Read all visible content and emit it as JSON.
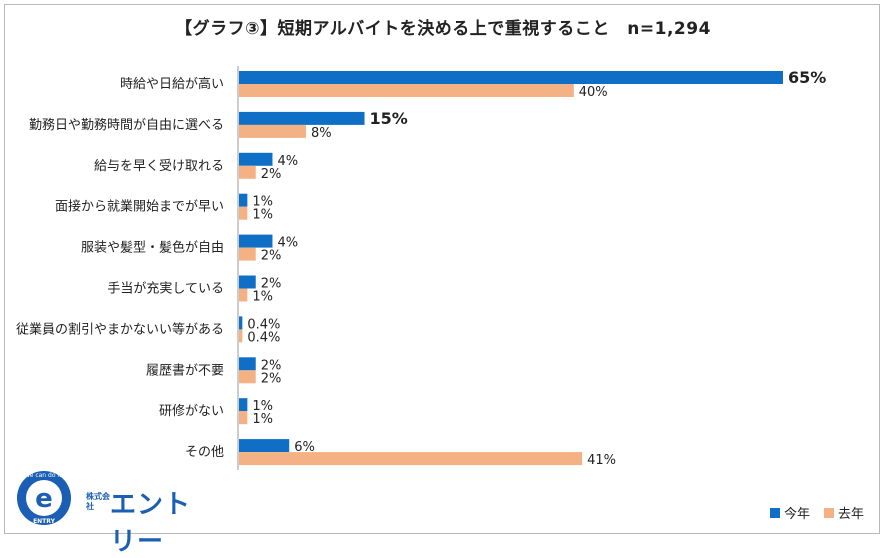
{
  "chart_data": {
    "type": "bar",
    "orientation": "horizontal",
    "title": "【グラフ③】短期アルバイトを決める上で重視すること　n=1,294",
    "categories": [
      "時給や日給が高い",
      "勤務日や勤務時間が自由に選べる",
      "給与を早く受け取れる",
      "面接から就業開始までが早い",
      "服装や髪型・髪色が自由",
      "手当が充実している",
      "従業員の割引やまかないい等がある",
      "履歴書が不要",
      "研修がない",
      "その他"
    ],
    "series": [
      {
        "name": "今年",
        "color": "#0f6fc6",
        "values": [
          65,
          15,
          4,
          1,
          4,
          2,
          0.4,
          2,
          1,
          6
        ],
        "labels": [
          "65%",
          "15%",
          "4%",
          "1%",
          "4%",
          "2%",
          "0.4%",
          "2%",
          "1%",
          "6%"
        ],
        "bold": [
          true,
          true,
          false,
          false,
          false,
          false,
          false,
          false,
          false,
          false
        ]
      },
      {
        "name": "去年",
        "color": "#f4b183",
        "values": [
          40,
          8,
          2,
          1,
          2,
          1,
          0.4,
          2,
          1,
          41
        ],
        "labels": [
          "40%",
          "8%",
          "2%",
          "1%",
          "2%",
          "1%",
          "0.4%",
          "2%",
          "1%",
          "41%"
        ],
        "bold": [
          false,
          false,
          false,
          false,
          false,
          false,
          false,
          false,
          false,
          false
        ]
      }
    ],
    "xlim": [
      0,
      65
    ],
    "grid": false,
    "legend_position": "bottom-right"
  },
  "logo": {
    "badge_text": "We can do it!",
    "badge_letter": "e",
    "badge_bottom": "ENTRY",
    "company_prefix": "株式会社",
    "company_name": "エントリー"
  }
}
